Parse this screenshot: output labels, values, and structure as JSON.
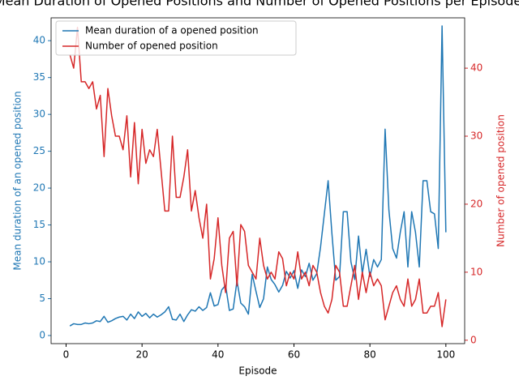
{
  "chart_data": {
    "type": "line",
    "title": "Mean Duration of Opened Positions and Number of Opened Positions per Episode",
    "x_label": "Episode",
    "y_label": "Mean duration of an opened position",
    "y2_label": "Number of opened position",
    "x": [
      1,
      2,
      3,
      4,
      5,
      6,
      7,
      8,
      9,
      10,
      11,
      12,
      13,
      14,
      15,
      16,
      17,
      18,
      19,
      20,
      21,
      22,
      23,
      24,
      25,
      26,
      27,
      28,
      29,
      30,
      31,
      32,
      33,
      34,
      35,
      36,
      37,
      38,
      39,
      40,
      41,
      42,
      43,
      44,
      45,
      46,
      47,
      48,
      49,
      50,
      51,
      52,
      53,
      54,
      55,
      56,
      57,
      58,
      59,
      60,
      61,
      62,
      63,
      64,
      65,
      66,
      67,
      68,
      69,
      70,
      71,
      72,
      73,
      74,
      75,
      76,
      77,
      78,
      79,
      80,
      81,
      82,
      83,
      84,
      85,
      86,
      87,
      88,
      89,
      90,
      91,
      92,
      93,
      94,
      95,
      96,
      97,
      98,
      99,
      100
    ],
    "series": [
      {
        "name": "Mean duration of a opened position",
        "color": "#1f77b4",
        "axis": "y",
        "values": [
          1.3,
          1.6,
          1.5,
          1.5,
          1.7,
          1.6,
          1.7,
          2.0,
          1.9,
          2.6,
          1.8,
          2.0,
          2.3,
          2.5,
          2.6,
          2.1,
          2.9,
          2.3,
          3.2,
          2.6,
          3.0,
          2.4,
          2.9,
          2.5,
          2.8,
          3.2,
          3.9,
          2.2,
          2.1,
          2.9,
          1.9,
          2.8,
          3.5,
          3.3,
          3.9,
          3.4,
          3.8,
          5.8,
          4.0,
          4.2,
          6.2,
          6.8,
          3.4,
          3.6,
          7.4,
          4.4,
          3.9,
          2.9,
          8.3,
          6.0,
          3.8,
          5.0,
          9.3,
          7.6,
          6.9,
          5.9,
          6.8,
          8.7,
          7.8,
          8.8,
          6.4,
          8.9,
          8.0,
          9.8,
          7.5,
          8.4,
          12.0,
          16.5,
          21.0,
          13.8,
          7.5,
          8.0,
          16.8,
          16.8,
          10.0,
          7.6,
          13.5,
          8.4,
          11.7,
          8.0,
          10.3,
          9.3,
          10.3,
          28.0,
          17.0,
          11.8,
          10.5,
          14.0,
          16.8,
          9.3,
          16.8,
          14.0,
          9.3,
          21.0,
          21.0,
          16.8,
          16.5,
          11.8,
          42.0,
          14.0
        ]
      },
      {
        "name": "Number of opened position",
        "color": "#d62728",
        "axis": "y2",
        "values": [
          42,
          40,
          46,
          38,
          38,
          37,
          38,
          34,
          36,
          27,
          37,
          33,
          30,
          30,
          28,
          33,
          24,
          32,
          23,
          31,
          26,
          28,
          27,
          31,
          25,
          19,
          19,
          30,
          21,
          21,
          24,
          28,
          19,
          22,
          18,
          15,
          20,
          9,
          12,
          18,
          11,
          7,
          15,
          16,
          8,
          17,
          16,
          11,
          10,
          9,
          15,
          11,
          9,
          10,
          9,
          13,
          12,
          8,
          10,
          9,
          13,
          9,
          10,
          8,
          11,
          10,
          7,
          5,
          4,
          6,
          11,
          10,
          5,
          5,
          8,
          11,
          6,
          10,
          7,
          10,
          8,
          9,
          8,
          3,
          5,
          7,
          8,
          6,
          5,
          9,
          5,
          6,
          9,
          4,
          4,
          5,
          5,
          7,
          2,
          6
        ]
      }
    ],
    "xlim": [
      -3.95,
      104.95
    ],
    "xticks": [
      0,
      20,
      40,
      60,
      80,
      100
    ],
    "ylim": [
      -1.1,
      43.1
    ],
    "yticks": [
      0,
      5,
      10,
      15,
      20,
      25,
      30,
      35,
      40
    ],
    "y2lim": [
      -0.5,
      47.4
    ],
    "y2ticks": [
      0,
      10,
      20,
      30,
      40
    ],
    "legend": "upper left"
  }
}
